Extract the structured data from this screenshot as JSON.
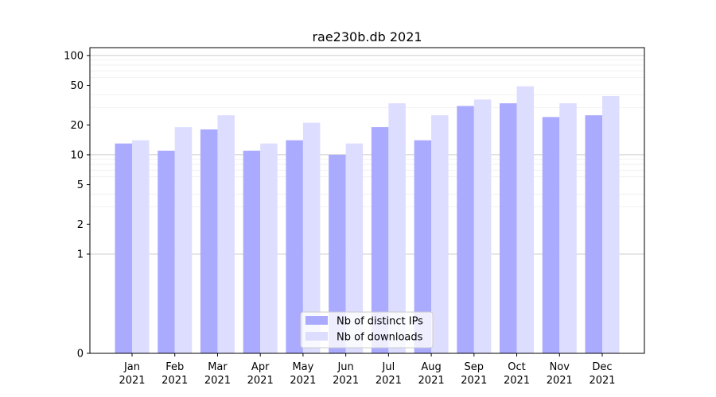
{
  "chart_data": {
    "type": "bar",
    "title": "rae230b.db 2021",
    "xlabel": "",
    "ylabel": "",
    "yscale": "symlog",
    "ylim": [
      0,
      120
    ],
    "yticks": [
      0,
      1,
      2,
      5,
      10,
      20,
      50,
      100
    ],
    "grid": true,
    "legend_position": "bottom-center",
    "categories": [
      [
        "Jan",
        "2021"
      ],
      [
        "Feb",
        "2021"
      ],
      [
        "Mar",
        "2021"
      ],
      [
        "Apr",
        "2021"
      ],
      [
        "May",
        "2021"
      ],
      [
        "Jun",
        "2021"
      ],
      [
        "Jul",
        "2021"
      ],
      [
        "Aug",
        "2021"
      ],
      [
        "Sep",
        "2021"
      ],
      [
        "Oct",
        "2021"
      ],
      [
        "Nov",
        "2021"
      ],
      [
        "Dec",
        "2021"
      ]
    ],
    "series": [
      {
        "name": "Nb of distinct IPs",
        "color": "#aaaaff",
        "values": [
          13,
          11,
          18,
          11,
          14,
          10,
          19,
          14,
          31,
          33,
          24,
          25
        ]
      },
      {
        "name": "Nb of downloads",
        "color": "#ddddff",
        "values": [
          14,
          19,
          25,
          13,
          21,
          13,
          33,
          25,
          36,
          49,
          33,
          39
        ]
      }
    ]
  }
}
